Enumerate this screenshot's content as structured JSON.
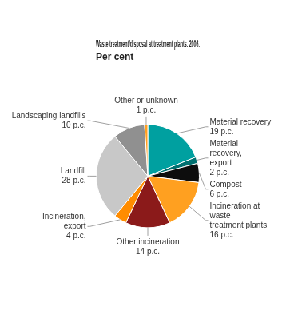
{
  "chart_data": {
    "type": "pie",
    "title": "Waste treatment/disposal at treatment plants. 2006.",
    "subtitle": "Per cent",
    "categories": [
      "Material recovery\n19 p.c.",
      "Material\nrecovery,\nexport\n2 p.c.",
      "Compost\n6 p.c.",
      "Incineration at\nwaste\ntreatment plants\n16 p.c.",
      "Other incineration\n14 p.c.",
      "Incineration,\nexport\n4 p.c.",
      "Landfill\n28 p.c.",
      "Landscaping landfills\n10 p.c.",
      "Other or unknown\n1 p.c."
    ],
    "values": [
      19,
      2,
      6,
      16,
      14,
      4,
      28,
      10,
      1
    ],
    "colors": [
      "#00A0A0",
      "#007070",
      "#0D0D0D",
      "#FFA020",
      "#8B1A1A",
      "#FF8C00",
      "#C8C8C8",
      "#909090",
      "#FFA020"
    ]
  }
}
